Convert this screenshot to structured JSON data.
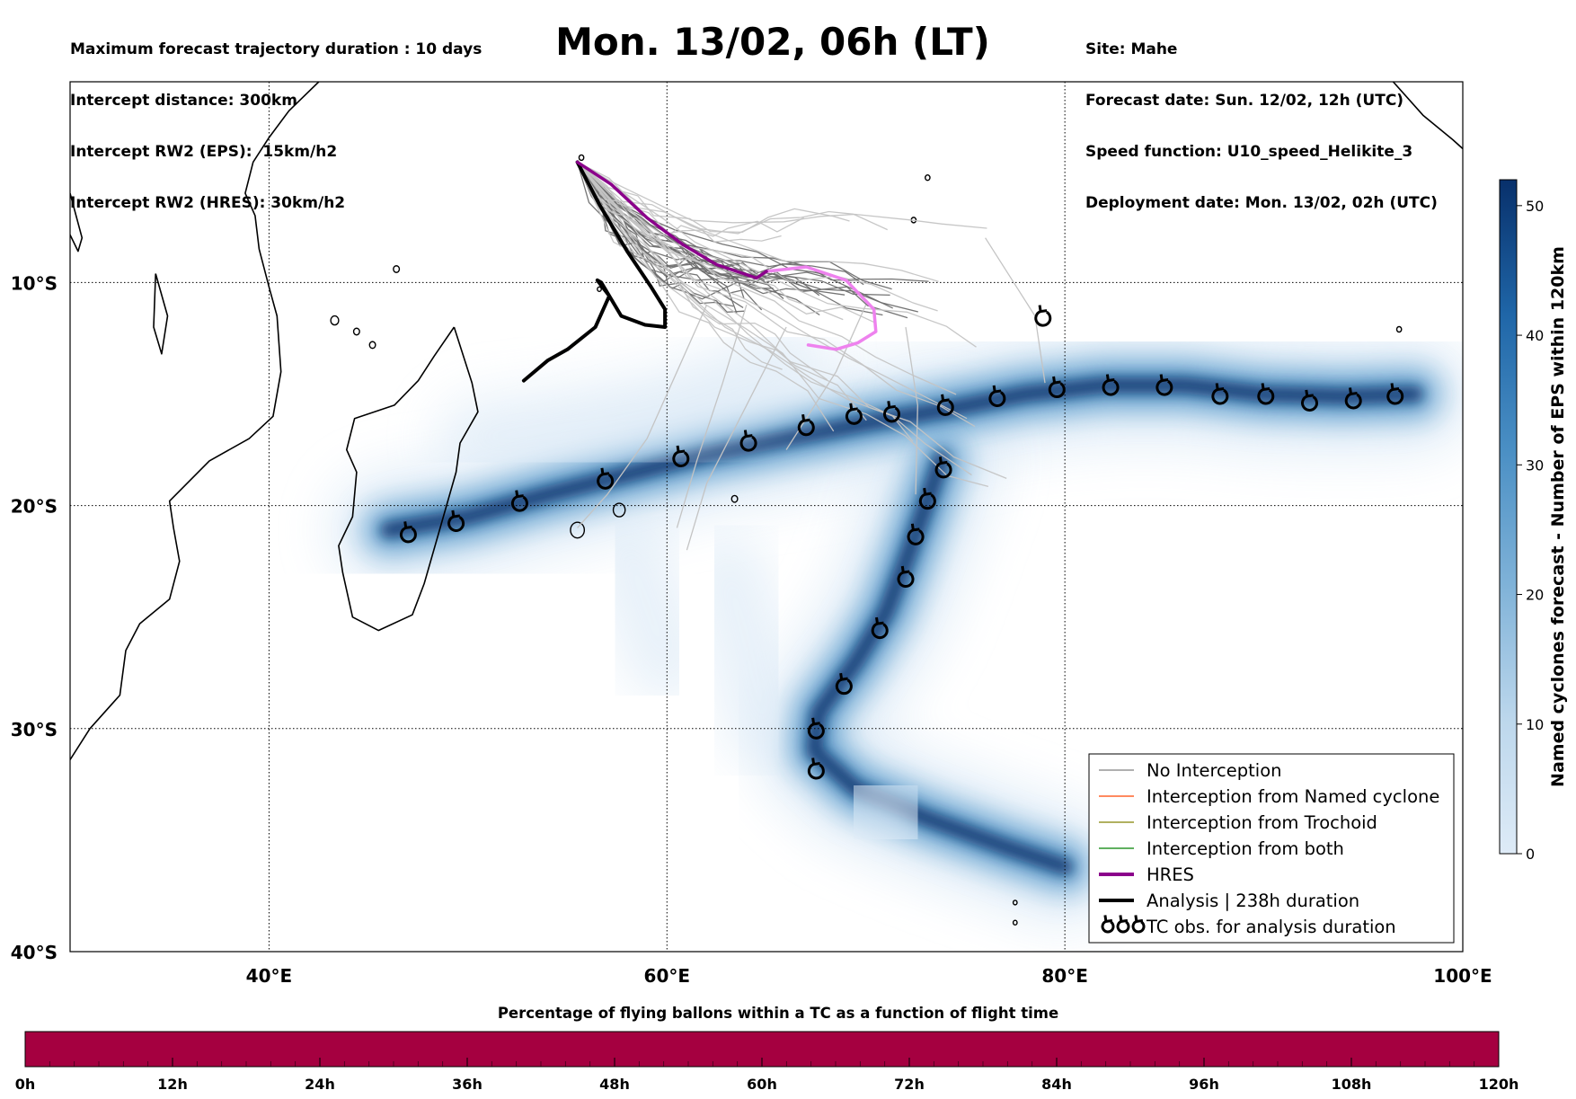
{
  "header": {
    "left_lines": [
      "Maximum forecast trajectory duration : 10 days",
      "Intercept distance: 300km",
      "Intercept RW2 (EPS):  15km/h2",
      "Intercept RW2 (HRES): 30km/h2"
    ],
    "title": "Mon. 13/02, 06h (LT)",
    "right_lines": [
      "Site: Mahe",
      "Forecast date: Sun. 12/02, 12h (UTC)",
      "Speed function: U10_speed_Helikite_3",
      "Deployment date: Mon. 13/02, 02h (UTC)"
    ]
  },
  "map": {
    "lon_range": [
      30,
      100
    ],
    "lat_range": [
      -40,
      -1
    ],
    "lon_ticks": [
      {
        "value": 40,
        "label": "40°E"
      },
      {
        "value": 60,
        "label": "60°E"
      },
      {
        "value": 80,
        "label": "80°E"
      },
      {
        "value": 100,
        "label": "100°E"
      }
    ],
    "lat_ticks": [
      {
        "value": -10,
        "label": "10°S"
      },
      {
        "value": -20,
        "label": "20°S"
      },
      {
        "value": -30,
        "label": "30°S"
      },
      {
        "value": -40,
        "label": "40°S"
      }
    ],
    "colors": {
      "no_interception": "#808080",
      "named_cyclone": "#ff4500",
      "trochoid": "#808000",
      "both": "#008000",
      "hres": "#8b008b",
      "hres_extension": "#ee82ee",
      "analysis": "#000000",
      "density_dark": "#08306b",
      "density_light": "#deebf7"
    },
    "release_site": {
      "lon": 55.5,
      "lat": -4.6
    },
    "tc_observations": [
      [
        47.0,
        -21.3
      ],
      [
        49.4,
        -20.8
      ],
      [
        52.6,
        -19.9
      ],
      [
        56.9,
        -18.9
      ],
      [
        60.7,
        -17.9
      ],
      [
        64.1,
        -17.2
      ],
      [
        67.0,
        -16.5
      ],
      [
        69.4,
        -16.0
      ],
      [
        71.3,
        -15.9
      ],
      [
        74.0,
        -15.6
      ],
      [
        76.6,
        -15.2
      ],
      [
        79.6,
        -14.8
      ],
      [
        82.3,
        -14.7
      ],
      [
        85.0,
        -14.7
      ],
      [
        87.8,
        -15.1
      ],
      [
        90.1,
        -15.1
      ],
      [
        92.3,
        -15.4
      ],
      [
        94.5,
        -15.3
      ],
      [
        96.6,
        -15.1
      ],
      [
        78.9,
        -11.6
      ],
      [
        73.9,
        -18.4
      ],
      [
        73.1,
        -19.8
      ],
      [
        72.5,
        -21.4
      ],
      [
        72.0,
        -23.3
      ],
      [
        70.7,
        -25.6
      ],
      [
        68.9,
        -28.1
      ],
      [
        67.5,
        -30.1
      ],
      [
        67.5,
        -31.9
      ]
    ],
    "analysis_track": [
      [
        55.5,
        -4.6
      ],
      [
        56.6,
        -6.5
      ],
      [
        58.0,
        -8.6
      ],
      [
        59.2,
        -10.2
      ],
      [
        59.9,
        -11.2
      ],
      [
        59.9,
        -12.0
      ],
      [
        58.9,
        -11.9
      ],
      [
        57.7,
        -11.5
      ],
      [
        56.7,
        -10.0
      ],
      [
        56.5,
        -9.9
      ],
      [
        57.1,
        -10.6
      ],
      [
        56.4,
        -12.0
      ],
      [
        55.0,
        -13.0
      ],
      [
        54.0,
        -13.5
      ],
      [
        52.8,
        -14.4
      ]
    ],
    "hres_track": [
      [
        55.5,
        -4.6
      ],
      [
        57.2,
        -5.6
      ],
      [
        59.0,
        -7.1
      ],
      [
        60.8,
        -8.3
      ],
      [
        62.5,
        -9.2
      ],
      [
        64.5,
        -9.8
      ],
      [
        65.0,
        -9.5
      ]
    ],
    "hres_extension_track": [
      [
        65.0,
        -9.5
      ],
      [
        67.0,
        -9.3
      ],
      [
        69.0,
        -9.9
      ],
      [
        70.4,
        -11.2
      ],
      [
        70.5,
        -12.2
      ],
      [
        69.6,
        -12.7
      ],
      [
        68.5,
        -13.0
      ],
      [
        67.1,
        -12.8
      ]
    ],
    "density_paths": [
      {
        "name": "west-track",
        "lonlat": [
          [
            97.6,
            -15.0
          ],
          [
            94.0,
            -15.1
          ],
          [
            90.0,
            -15.0
          ],
          [
            86.0,
            -14.6
          ],
          [
            82.0,
            -14.6
          ],
          [
            78.0,
            -15.0
          ],
          [
            74.0,
            -15.7
          ],
          [
            70.0,
            -16.3
          ],
          [
            66.0,
            -17.0
          ],
          [
            62.0,
            -17.7
          ],
          [
            58.0,
            -18.6
          ],
          [
            54.0,
            -19.5
          ],
          [
            50.0,
            -20.5
          ],
          [
            46.0,
            -21.1
          ]
        ]
      },
      {
        "name": "south-track",
        "lonlat": [
          [
            73.8,
            -17.9
          ],
          [
            73.0,
            -20.0
          ],
          [
            72.0,
            -22.5
          ],
          [
            71.0,
            -24.8
          ],
          [
            69.5,
            -27.0
          ],
          [
            67.6,
            -29.3
          ],
          [
            67.4,
            -31.0
          ],
          [
            69.5,
            -32.7
          ],
          [
            73.0,
            -34.0
          ],
          [
            77.0,
            -35.3
          ],
          [
            80.0,
            -36.2
          ]
        ]
      }
    ]
  },
  "colorbar": {
    "label": "Named cyclones forecast - Number of EPS within 120km",
    "ticks": [
      "0",
      "10",
      "20",
      "30",
      "40",
      "50"
    ],
    "range": [
      0,
      52
    ]
  },
  "legend": {
    "items": [
      {
        "label": "No Interception",
        "color": "#808080",
        "kind": "thin"
      },
      {
        "label": "Interception from Named cyclone",
        "color": "#ff4500",
        "kind": "thin"
      },
      {
        "label": "Interception from Trochoid",
        "color": "#808000",
        "kind": "thin"
      },
      {
        "label": "Interception from both",
        "color": "#008000",
        "kind": "thin"
      },
      {
        "label": "HRES",
        "color": "#8b008b",
        "kind": "thick"
      },
      {
        "label": "Analysis | 238h duration",
        "color": "#000000",
        "kind": "thick"
      },
      {
        "label": "TC obs. for analysis duration",
        "color": "#000000",
        "kind": "symbol"
      }
    ]
  },
  "time_bar": {
    "title": "Percentage of flying ballons within a TC as a function of flight time",
    "ticks": [
      "0h",
      "12h",
      "24h",
      "36h",
      "48h",
      "60h",
      "72h",
      "84h",
      "96h",
      "108h",
      "120h"
    ],
    "fill_color": "#a50040",
    "percentage": 100
  }
}
